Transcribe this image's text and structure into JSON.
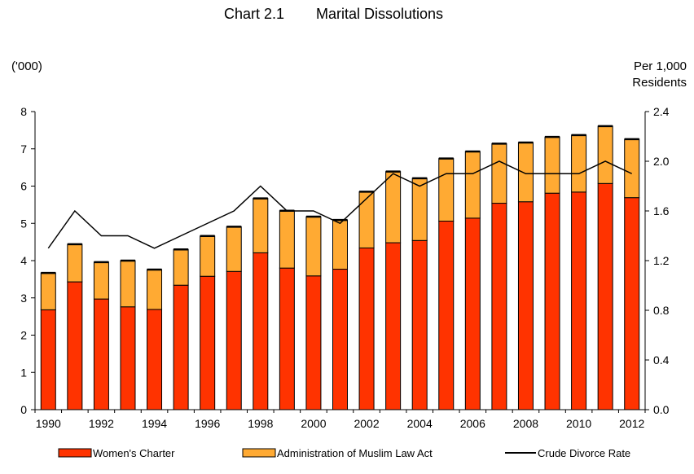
{
  "chart_data": {
    "type": "bar",
    "stacked": true,
    "title_number": "Chart 2.1",
    "title": "Marital Dissolutions",
    "y_left_unit": "('000)",
    "y_right_unit_line1": "Per 1,000",
    "y_right_unit_line2": "Residents",
    "categories": [
      "1990",
      "1991",
      "1992",
      "1993",
      "1994",
      "1995",
      "1996",
      "1997",
      "1998",
      "1999",
      "2000",
      "2001",
      "2002",
      "2003",
      "2004",
      "2005",
      "2006",
      "2007",
      "2008",
      "2009",
      "2010",
      "2011",
      "2012"
    ],
    "x_tick_labels": [
      "1990",
      "1992",
      "1994",
      "1996",
      "1998",
      "2000",
      "2002",
      "2004",
      "2006",
      "2008",
      "2010",
      "2012"
    ],
    "ylim_left": [
      0,
      8
    ],
    "y_left_ticks": [
      "0",
      "1",
      "2",
      "3",
      "4",
      "5",
      "6",
      "7",
      "8"
    ],
    "ylim_right": [
      0,
      2.4
    ],
    "y_right_ticks": [
      "0.0",
      "0.4",
      "0.8",
      "1.2",
      "1.6",
      "2.0",
      "2.4"
    ],
    "series": [
      {
        "name": "Women's Charter",
        "kind": "bar",
        "axis": "left",
        "color": "#ff3300",
        "values": [
          2.68,
          3.43,
          2.97,
          2.76,
          2.69,
          3.34,
          3.58,
          3.71,
          4.21,
          3.8,
          3.59,
          3.77,
          4.34,
          4.48,
          4.54,
          5.06,
          5.14,
          5.54,
          5.58,
          5.81,
          5.84,
          6.07,
          5.69
        ]
      },
      {
        "name": "Administration of Muslim Law Act",
        "kind": "bar",
        "axis": "left",
        "color": "#ffaa33",
        "values": [
          0.99,
          1.01,
          0.99,
          1.24,
          1.07,
          0.96,
          1.08,
          1.2,
          1.46,
          1.54,
          1.59,
          1.32,
          1.51,
          1.91,
          1.67,
          1.68,
          1.79,
          1.6,
          1.59,
          1.51,
          1.53,
          1.54,
          1.57
        ]
      },
      {
        "name": "Crude Divorce  Rate",
        "kind": "line",
        "axis": "right",
        "color": "#000000",
        "values": [
          1.3,
          1.6,
          1.4,
          1.4,
          1.3,
          1.4,
          1.5,
          1.6,
          1.8,
          1.6,
          1.6,
          1.5,
          1.7,
          1.9,
          1.8,
          1.9,
          1.9,
          2.0,
          1.9,
          1.9,
          1.9,
          2.0,
          1.9
        ]
      }
    ],
    "grid": false,
    "legend_position": "bottom"
  }
}
